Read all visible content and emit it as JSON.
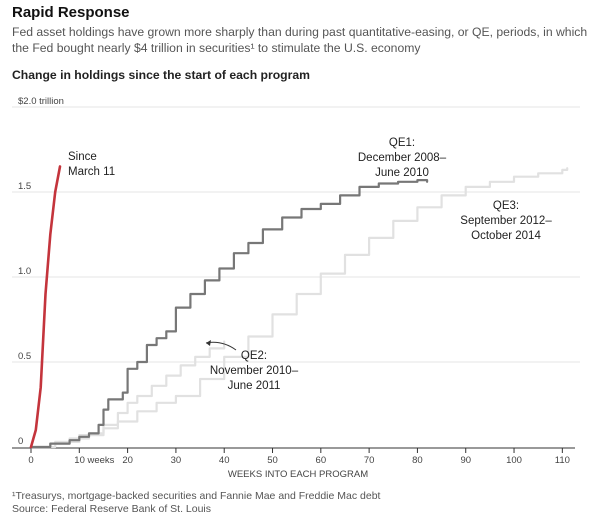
{
  "header": {
    "title": "Rapid Response",
    "subtitle": "Fed asset holdings have grown more sharply than during past quantitative-easing, or QE, periods, in which the Fed bought nearly $4 trillion in securities¹ to stimulate the U.S. economy",
    "chart_heading": "Change in holdings since the start of each program"
  },
  "footnotes": {
    "note": "¹Treasurys, mortgage-backed securities and Fannie Mae and Freddie Mac debt",
    "source": "Source: Federal Reserve Bank of St. Louis"
  },
  "colors": {
    "covid": "#c4343c",
    "qe1": "#777777",
    "qe3": "#e1e1e1",
    "qe2": "#e1e1e1",
    "text": "#222222"
  },
  "chart_data": {
    "type": "line",
    "title": "",
    "xlabel": "WEEKS INTO EACH PROGRAM",
    "ylabel": "",
    "xlim": [
      0,
      112
    ],
    "ylim": [
      0,
      2.0
    ],
    "x_ticks": [
      {
        "value": 0,
        "label": "0"
      },
      {
        "value": 10,
        "label": "10 weeks"
      },
      {
        "value": 20,
        "label": "20"
      },
      {
        "value": 30,
        "label": "30"
      },
      {
        "value": 40,
        "label": "40"
      },
      {
        "value": 50,
        "label": "50"
      },
      {
        "value": 60,
        "label": "60"
      },
      {
        "value": 70,
        "label": "70"
      },
      {
        "value": 80,
        "label": "80"
      },
      {
        "value": 90,
        "label": "90"
      },
      {
        "value": 100,
        "label": "100"
      },
      {
        "value": 110,
        "label": "110"
      }
    ],
    "y_ticks": [
      {
        "value": 0,
        "label": "0"
      },
      {
        "value": 0.5,
        "label": "0.5"
      },
      {
        "value": 1.0,
        "label": "1.0"
      },
      {
        "value": 1.5,
        "label": "1.5"
      },
      {
        "value": 2.0,
        "label": "$2.0 trillion"
      }
    ],
    "grid": true,
    "series": [
      {
        "key": "qe3",
        "labels": [
          "QE3:",
          "September 2012–",
          "October 2014"
        ],
        "x": [
          0,
          5,
          10,
          15,
          18,
          22,
          26,
          30,
          35,
          40,
          45,
          50,
          55,
          60,
          65,
          70,
          75,
          80,
          85,
          90,
          95,
          100,
          105,
          110,
          111
        ],
        "y": [
          0,
          0.03,
          0.07,
          0.11,
          0.15,
          0.21,
          0.26,
          0.3,
          0.4,
          0.53,
          0.65,
          0.78,
          0.9,
          1.02,
          1.13,
          1.23,
          1.33,
          1.41,
          1.48,
          1.53,
          1.56,
          1.59,
          1.61,
          1.63,
          1.64
        ]
      },
      {
        "key": "qe2",
        "labels": [
          "QE2:",
          "November 2010–",
          "June 2011"
        ],
        "x": [
          0,
          4,
          8,
          12,
          15,
          18,
          20,
          22,
          25,
          28,
          31,
          34,
          37,
          40
        ],
        "y": [
          0,
          0.02,
          0.05,
          0.08,
          0.13,
          0.2,
          0.26,
          0.3,
          0.36,
          0.42,
          0.48,
          0.53,
          0.58,
          0.62
        ]
      },
      {
        "key": "qe1",
        "labels": [
          "QE1:",
          "December 2008–",
          "June 2010"
        ],
        "x": [
          0,
          4,
          8,
          10,
          12,
          14,
          15,
          16,
          19,
          20,
          22,
          24,
          26,
          28,
          30,
          33,
          36,
          39,
          42,
          45,
          48,
          52,
          56,
          60,
          64,
          68,
          72,
          76,
          80,
          82
        ],
        "y": [
          0,
          0.02,
          0.04,
          0.06,
          0.08,
          0.13,
          0.22,
          0.28,
          0.32,
          0.46,
          0.5,
          0.6,
          0.64,
          0.68,
          0.82,
          0.9,
          0.98,
          1.05,
          1.14,
          1.2,
          1.28,
          1.35,
          1.4,
          1.43,
          1.48,
          1.53,
          1.55,
          1.56,
          1.57,
          1.56
        ]
      },
      {
        "key": "covid",
        "labels": [
          "Since",
          "March 11"
        ],
        "x": [
          0,
          0.5,
          1,
          2,
          3,
          4,
          5,
          6
        ],
        "y": [
          0,
          0.05,
          0.1,
          0.35,
          0.9,
          1.25,
          1.5,
          1.65
        ]
      }
    ]
  }
}
